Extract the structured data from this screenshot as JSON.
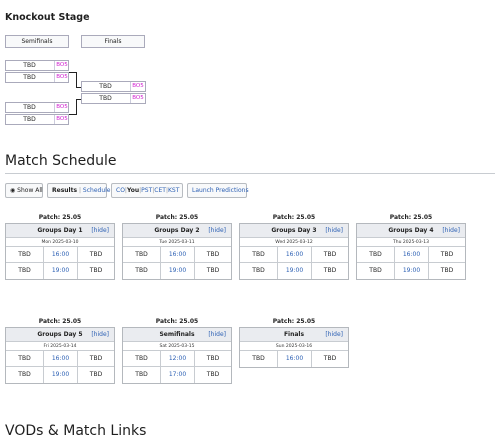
{
  "knockout": {
    "title": "Knockout Stage",
    "semifinals_label": "Semifinals",
    "finals_label": "Finals",
    "semifinal_slots": [
      {
        "team": "TBD",
        "format": "BO5"
      },
      {
        "team": "TBD",
        "format": "BO5"
      },
      {
        "team": "TBD",
        "format": "BO5"
      },
      {
        "team": "TBD",
        "format": "BO5"
      }
    ],
    "final_slots": [
      {
        "team": "TBD",
        "format": "BO5"
      },
      {
        "team": "TBD",
        "format": "BO5"
      }
    ]
  },
  "schedule": {
    "title": "Match Schedule",
    "tabs": {
      "show_all_icon": "eye-icon",
      "show_all": "Show All",
      "results": "Results",
      "schedule": "Schedule",
      "tz_co": "CO",
      "tz_you": "You",
      "tz_pst": "PST",
      "tz_cet": "CET",
      "tz_kst": "KST",
      "launch_predictions": "Launch Predictions"
    },
    "days": [
      {
        "patch": "Patch: 25.05",
        "title": "Groups Day 1",
        "hide": "[hide]",
        "date": "Mon 2025-03-10",
        "matches": [
          {
            "team1": "TBD",
            "time": "16:00",
            "team2": "TBD"
          },
          {
            "team1": "TBD",
            "time": "19:00",
            "team2": "TBD"
          }
        ]
      },
      {
        "patch": "Patch: 25.05",
        "title": "Groups Day 2",
        "hide": "[hide]",
        "date": "Tue 2025-03-11",
        "matches": [
          {
            "team1": "TBD",
            "time": "16:00",
            "team2": "TBD"
          },
          {
            "team1": "TBD",
            "time": "19:00",
            "team2": "TBD"
          }
        ]
      },
      {
        "patch": "Patch: 25.05",
        "title": "Groups Day 3",
        "hide": "[hide]",
        "date": "Wed 2025-03-12",
        "matches": [
          {
            "team1": "TBD",
            "time": "16:00",
            "team2": "TBD"
          },
          {
            "team1": "TBD",
            "time": "19:00",
            "team2": "TBD"
          }
        ]
      },
      {
        "patch": "Patch: 25.05",
        "title": "Groups Day 4",
        "hide": "[hide]",
        "date": "Thu 2025-03-13",
        "matches": [
          {
            "team1": "TBD",
            "time": "16:00",
            "team2": "TBD"
          },
          {
            "team1": "TBD",
            "time": "19:00",
            "team2": "TBD"
          }
        ]
      },
      {
        "patch": "Patch: 25.05",
        "title": "Groups Day 5",
        "hide": "[hide]",
        "date": "Fri 2025-03-14",
        "matches": [
          {
            "team1": "TBD",
            "time": "16:00",
            "team2": "TBD"
          },
          {
            "team1": "TBD",
            "time": "19:00",
            "team2": "TBD"
          }
        ]
      },
      {
        "patch": "Patch: 25.05",
        "title": "Semifinals",
        "hide": "[hide]",
        "date": "Sat 2025-03-15",
        "matches": [
          {
            "team1": "TBD",
            "time": "12:00",
            "team2": "TBD"
          },
          {
            "team1": "TBD",
            "time": "17:00",
            "team2": "TBD"
          }
        ]
      },
      {
        "patch": "Patch: 25.05",
        "title": "Finals",
        "hide": "[hide]",
        "date": "Sun 2025-03-16",
        "matches": [
          {
            "team1": "TBD",
            "time": "16:00",
            "team2": "TBD"
          }
        ]
      }
    ]
  },
  "vods": {
    "title": "VODs & Match Links"
  },
  "colors": {
    "link": "#2b5fb3",
    "series_format": "#d020d0",
    "header_bg": "#eaecf0",
    "border": "#b4b8bd"
  }
}
